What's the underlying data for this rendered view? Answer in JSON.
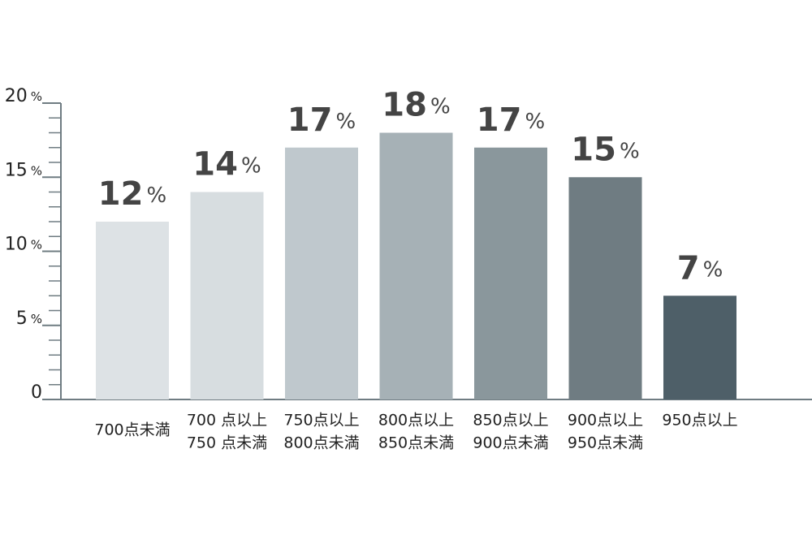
{
  "chart_data": {
    "type": "bar",
    "categories": [
      [
        "700点未満"
      ],
      [
        "700 点以上",
        "750 点未満"
      ],
      [
        "750点以上",
        "800点未満"
      ],
      [
        "800点以上",
        "850点未満"
      ],
      [
        "850点以上",
        "900点未満"
      ],
      [
        "900点以上",
        "950点未満"
      ],
      [
        "950点以上"
      ]
    ],
    "values": [
      12,
      14,
      17,
      18,
      17,
      15,
      7
    ],
    "value_unit": "%",
    "colors": [
      "#dde2e5",
      "#d7dde0",
      "#bfc8cd",
      "#a6b1b6",
      "#8a979c",
      "#6f7c82",
      "#4e5f68"
    ],
    "ylim": [
      0,
      20
    ],
    "yticks": [
      0,
      5,
      10,
      15,
      20
    ],
    "y_unit": "%",
    "minor_tick_step": 1,
    "axis_color": "#6f7c82"
  }
}
